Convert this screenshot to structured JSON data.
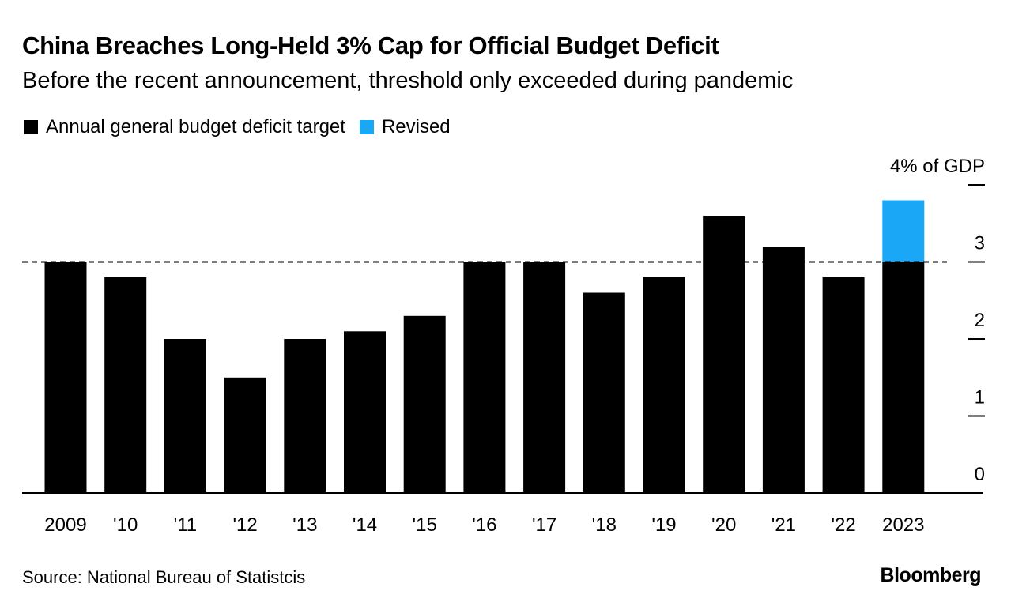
{
  "title": "China Breaches Long-Held 3% Cap for Official Budget Deficit",
  "subtitle": "Before the recent announcement, threshold only exceeded during pandemic",
  "legend": {
    "items": [
      {
        "label": "Annual general budget deficit target",
        "color": "#000000"
      },
      {
        "label": "Revised",
        "color": "#1aa7f5"
      }
    ]
  },
  "source": "Source: National Bureau of Statistcis",
  "brand": "Bloomberg",
  "chart_data": {
    "type": "bar",
    "stacked": true,
    "categories": [
      "2009",
      "'10",
      "'11",
      "'12",
      "'13",
      "'14",
      "'15",
      "'16",
      "'17",
      "'18",
      "'19",
      "'20",
      "'21",
      "'22",
      "2023"
    ],
    "series": [
      {
        "name": "Annual general budget deficit target",
        "color": "#000000",
        "values": [
          3.0,
          2.8,
          2.0,
          1.5,
          2.0,
          2.1,
          2.3,
          3.0,
          3.0,
          2.6,
          2.8,
          3.6,
          3.2,
          2.8,
          3.0
        ]
      },
      {
        "name": "Revised",
        "color": "#1aa7f5",
        "values": [
          0,
          0,
          0,
          0,
          0,
          0,
          0,
          0,
          0,
          0,
          0,
          0,
          0,
          0,
          0.8
        ]
      }
    ],
    "ylim": [
      0,
      4
    ],
    "yticks": [
      0,
      1,
      2,
      3,
      4
    ],
    "ytick_labels": [
      "0",
      "1",
      "2",
      "3",
      "4% of GDP"
    ],
    "y_axis_side": "right",
    "reference_line": {
      "value": 3.0,
      "style": "dashed"
    },
    "grid": false,
    "legend_position": "top-left"
  }
}
